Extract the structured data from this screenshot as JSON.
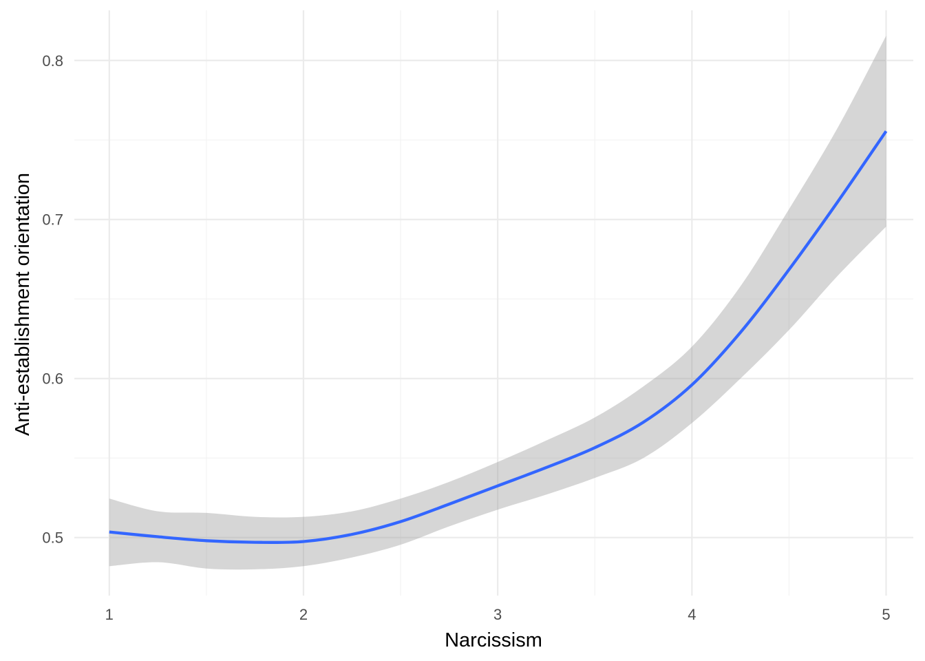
{
  "chart_data": {
    "type": "line",
    "title": "",
    "xlabel": "Narcissism",
    "ylabel": "Anti-establishment orientation",
    "xlim": [
      0.82,
      5.14
    ],
    "ylim": [
      0.4635,
      0.8315
    ],
    "x_ticks": [
      1,
      2,
      3,
      4,
      5
    ],
    "x_tick_labels": [
      "1",
      "2",
      "3",
      "4",
      "5"
    ],
    "y_ticks": [
      0.5,
      0.6,
      0.7,
      0.8
    ],
    "y_tick_labels": [
      "0.5",
      "0.6",
      "0.7",
      "0.8"
    ],
    "x_minor_ticks": [
      1.5,
      2.5,
      3.5,
      4.5
    ],
    "y_minor_ticks": [
      0.55,
      0.65,
      0.75
    ],
    "grid": true,
    "colors": {
      "line": "#3366ff",
      "ribbon": "#999999",
      "grid_major": "#ebebeb",
      "grid_minor": "#f2f2f2",
      "tick_text": "#4d4d4d",
      "title_text": "#000000"
    },
    "series": [
      {
        "x": [
          1.0,
          1.25,
          1.5,
          1.75,
          2.0,
          2.25,
          2.5,
          2.75,
          3.0,
          3.25,
          3.5,
          3.75,
          4.0,
          4.25,
          4.5,
          4.75,
          5.0
        ],
        "y": [
          0.5035,
          0.5005,
          0.498,
          0.497,
          0.4975,
          0.502,
          0.51,
          0.521,
          0.5325,
          0.544,
          0.5565,
          0.5725,
          0.596,
          0.629,
          0.6685,
          0.711,
          0.7555
        ],
        "lower": [
          0.482,
          0.4845,
          0.4805,
          0.48,
          0.482,
          0.4875,
          0.4955,
          0.507,
          0.5175,
          0.527,
          0.5375,
          0.55,
          0.572,
          0.6,
          0.6305,
          0.6645,
          0.6955
        ],
        "upper": [
          0.5245,
          0.5165,
          0.5155,
          0.513,
          0.513,
          0.5165,
          0.5245,
          0.535,
          0.5475,
          0.561,
          0.5755,
          0.595,
          0.62,
          0.658,
          0.7065,
          0.7575,
          0.8155
        ]
      }
    ]
  }
}
